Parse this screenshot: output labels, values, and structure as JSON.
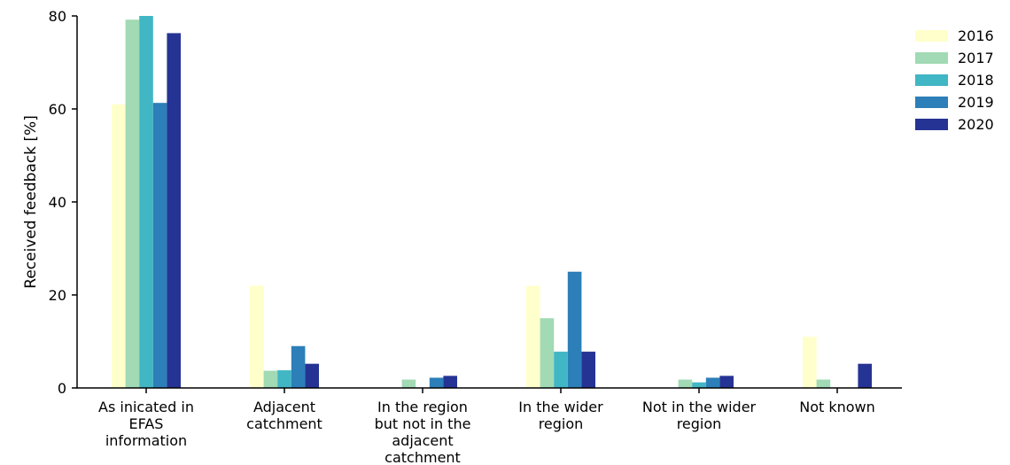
{
  "chart_data": {
    "type": "bar",
    "title": "",
    "xlabel": "",
    "ylabel": "Received feedback [%]",
    "ylim": [
      0,
      80
    ],
    "yticks": [
      0,
      20,
      40,
      60,
      80
    ],
    "grid": false,
    "legend_position": "top-right",
    "categories": [
      [
        "As inicated in",
        "EFAS",
        "information"
      ],
      [
        "Adjacent",
        "catchment"
      ],
      [
        "In the region",
        "but not in the",
        "adjacent",
        "catchment"
      ],
      [
        "In the wider",
        "region"
      ],
      [
        "Not in the wider",
        "region"
      ],
      [
        "Not known"
      ]
    ],
    "series": [
      {
        "name": "2016",
        "color": "#ffffcc",
        "values": [
          61,
          22,
          0,
          22,
          0,
          11
        ]
      },
      {
        "name": "2017",
        "color": "#a1dab4",
        "values": [
          79.2,
          3.7,
          1.8,
          15,
          1.8,
          1.8
        ]
      },
      {
        "name": "2018",
        "color": "#41b6c4",
        "values": [
          80,
          3.8,
          0,
          7.8,
          1.2,
          0
        ]
      },
      {
        "name": "2019",
        "color": "#2c7fb8",
        "values": [
          61.3,
          9,
          2.2,
          25,
          2.2,
          0
        ]
      },
      {
        "name": "2020",
        "color": "#253494",
        "values": [
          76.3,
          5.2,
          2.6,
          7.8,
          2.6,
          5.2
        ]
      }
    ]
  }
}
